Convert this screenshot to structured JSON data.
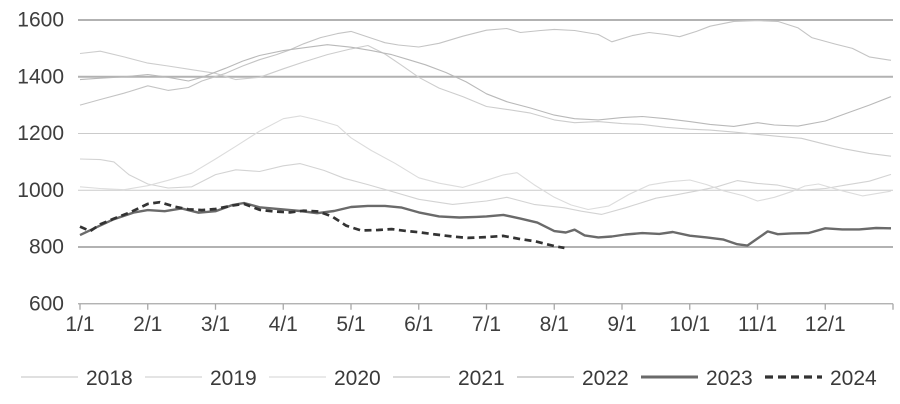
{
  "chart_data": {
    "type": "line",
    "title": "",
    "grid": "horizontal-only",
    "legend_position": "bottom",
    "colors": {
      "axis_text": "#3e3e3e",
      "grid_major": "#b2b2b2",
      "grid_minor": "#cbcbcb",
      "axis_line": "#a8a8a8"
    },
    "y_axis": {
      "range": [
        600,
        1600
      ],
      "ticks": [
        {
          "label": "1600",
          "value": 1600,
          "weight": "major"
        },
        {
          "label": "1400",
          "value": 1400,
          "weight": "major"
        },
        {
          "label": "1200",
          "value": 1200,
          "weight": "minor"
        },
        {
          "label": "1000",
          "value": 1000,
          "weight": "minor"
        },
        {
          "label": "800",
          "value": 800,
          "weight": "major"
        },
        {
          "label": "600",
          "value": 600,
          "weight": "axis"
        }
      ]
    },
    "x_axis": {
      "range_months": [
        1,
        13
      ],
      "ticks": [
        {
          "label": "1/1",
          "month": 1
        },
        {
          "label": "2/1",
          "month": 2
        },
        {
          "label": "3/1",
          "month": 3
        },
        {
          "label": "4/1",
          "month": 4
        },
        {
          "label": "5/1",
          "month": 5
        },
        {
          "label": "6/1",
          "month": 6
        },
        {
          "label": "7/1",
          "month": 7
        },
        {
          "label": "8/1",
          "month": 8
        },
        {
          "label": "9/1",
          "month": 9
        },
        {
          "label": "10/1",
          "month": 10
        },
        {
          "label": "11/1",
          "month": 11
        },
        {
          "label": "12/1",
          "month": 12
        }
      ]
    },
    "series": [
      {
        "name": "2018",
        "color": "#cdcdcd",
        "width": 1.1,
        "dash": "",
        "x": [
          1.0,
          1.3,
          1.65,
          2.0,
          2.3,
          2.65,
          3.0,
          3.3,
          3.65,
          4.0,
          4.3,
          4.65,
          5.0,
          5.25,
          5.5,
          5.75,
          6.0,
          6.3,
          6.65,
          7.0,
          7.3,
          7.65,
          8.0,
          8.3,
          8.65,
          9.0,
          9.3,
          9.65,
          10.0,
          10.3,
          10.65,
          11.0,
          11.3,
          11.65,
          12.0,
          12.3,
          12.65,
          12.97
        ],
        "y": [
          1482,
          1490,
          1470,
          1448,
          1438,
          1425,
          1412,
          1390,
          1398,
          1428,
          1452,
          1478,
          1498,
          1510,
          1480,
          1440,
          1398,
          1360,
          1330,
          1295,
          1285,
          1272,
          1248,
          1238,
          1242,
          1235,
          1232,
          1222,
          1215,
          1212,
          1205,
          1197,
          1190,
          1183,
          1162,
          1145,
          1130,
          1120
        ]
      },
      {
        "name": "2019",
        "color": "#d3d3d3",
        "width": 1.1,
        "dash": "",
        "x": [
          1.0,
          1.3,
          1.5,
          1.72,
          2.0,
          2.3,
          2.65,
          3.0,
          3.3,
          3.65,
          4.0,
          4.25,
          4.6,
          4.9,
          5.25,
          5.6,
          6.0,
          6.5,
          7.0,
          7.3,
          7.7,
          8.15,
          8.4,
          8.7,
          9.05,
          9.5,
          9.8,
          10.15,
          10.4,
          10.7,
          11.0,
          11.3,
          11.65,
          12.0,
          12.3,
          12.65,
          12.97
        ],
        "y": [
          1110,
          1108,
          1100,
          1055,
          1022,
          1008,
          1012,
          1055,
          1072,
          1066,
          1086,
          1094,
          1070,
          1042,
          1020,
          996,
          968,
          950,
          962,
          975,
          950,
          938,
          926,
          915,
          938,
          972,
          984,
          1000,
          1012,
          1034,
          1024,
          1018,
          1000,
          1006,
          1018,
          1032,
          1056
        ]
      },
      {
        "name": "2020",
        "color": "#dcdcdc",
        "width": 1.1,
        "dash": "",
        "x": [
          1.0,
          1.3,
          1.65,
          2.0,
          2.3,
          2.65,
          3.0,
          3.3,
          3.65,
          4.0,
          4.25,
          4.5,
          4.8,
          5.0,
          5.3,
          5.65,
          6.0,
          6.3,
          6.65,
          7.0,
          7.25,
          7.45,
          7.7,
          8.0,
          8.25,
          8.5,
          8.8,
          9.1,
          9.4,
          9.7,
          10.0,
          10.25,
          10.5,
          10.8,
          11.0,
          11.25,
          11.5,
          11.7,
          11.9,
          12.25,
          12.55,
          12.97
        ],
        "y": [
          1012,
          1006,
          1002,
          1016,
          1035,
          1060,
          1110,
          1155,
          1208,
          1252,
          1262,
          1248,
          1228,
          1185,
          1140,
          1095,
          1044,
          1025,
          1010,
          1035,
          1054,
          1062,
          1020,
          975,
          948,
          932,
          944,
          985,
          1018,
          1030,
          1036,
          1020,
          998,
          980,
          962,
          975,
          995,
          1015,
          1022,
          998,
          980,
          997
        ]
      },
      {
        "name": "2021",
        "color": "#c4c4c4",
        "width": 1.1,
        "dash": "",
        "x": [
          1.0,
          1.3,
          1.65,
          2.0,
          2.3,
          2.6,
          2.8,
          3.15,
          3.4,
          3.65,
          3.9,
          4.1,
          4.3,
          4.55,
          4.8,
          5.0,
          5.25,
          5.5,
          5.7,
          6.0,
          6.3,
          6.65,
          7.0,
          7.3,
          7.5,
          7.8,
          8.0,
          8.3,
          8.65,
          8.85,
          9.15,
          9.4,
          9.65,
          9.85,
          10.1,
          10.3,
          10.65,
          11.0,
          11.3,
          11.6,
          11.8,
          12.15,
          12.4,
          12.65,
          12.97
        ],
        "y": [
          1300,
          1320,
          1342,
          1368,
          1352,
          1362,
          1385,
          1412,
          1438,
          1460,
          1478,
          1495,
          1516,
          1538,
          1552,
          1560,
          1540,
          1520,
          1512,
          1505,
          1518,
          1543,
          1564,
          1570,
          1556,
          1563,
          1567,
          1563,
          1549,
          1523,
          1545,
          1556,
          1549,
          1541,
          1560,
          1578,
          1595,
          1598,
          1595,
          1572,
          1538,
          1515,
          1500,
          1470,
          1458
        ]
      },
      {
        "name": "2022",
        "color": "#b9b9b9",
        "width": 1.1,
        "dash": "",
        "x": [
          1.0,
          1.3,
          1.65,
          2.0,
          2.3,
          2.6,
          2.8,
          3.15,
          3.4,
          3.65,
          4.0,
          4.3,
          4.65,
          5.0,
          5.3,
          5.6,
          5.85,
          6.1,
          6.4,
          6.7,
          7.0,
          7.3,
          7.65,
          8.0,
          8.3,
          8.65,
          9.0,
          9.3,
          9.65,
          10.0,
          10.3,
          10.65,
          11.0,
          11.25,
          11.6,
          12.0,
          12.3,
          12.65,
          12.97
        ],
        "y": [
          1390,
          1395,
          1400,
          1408,
          1398,
          1385,
          1398,
          1430,
          1455,
          1475,
          1492,
          1502,
          1513,
          1504,
          1492,
          1478,
          1460,
          1442,
          1415,
          1382,
          1340,
          1312,
          1290,
          1265,
          1252,
          1248,
          1256,
          1260,
          1252,
          1242,
          1232,
          1225,
          1238,
          1230,
          1226,
          1244,
          1270,
          1300,
          1330
        ]
      },
      {
        "name": "2023",
        "color": "#6a6a6a",
        "width": 2.4,
        "dash": "",
        "x": [
          1.0,
          1.25,
          1.5,
          1.8,
          2.0,
          2.25,
          2.5,
          2.75,
          3.0,
          3.25,
          3.42,
          3.65,
          4.0,
          4.25,
          4.5,
          4.75,
          5.0,
          5.25,
          5.5,
          5.75,
          6.0,
          6.3,
          6.6,
          6.85,
          7.0,
          7.25,
          7.5,
          7.75,
          8.0,
          8.17,
          8.3,
          8.45,
          8.65,
          8.85,
          9.05,
          9.3,
          9.55,
          9.75,
          10.0,
          10.25,
          10.5,
          10.7,
          10.85,
          11.0,
          11.15,
          11.3,
          11.5,
          11.75,
          12.0,
          12.25,
          12.5,
          12.75,
          12.97
        ],
        "y": [
          842,
          870,
          898,
          922,
          930,
          926,
          936,
          921,
          926,
          948,
          955,
          940,
          932,
          927,
          919,
          927,
          941,
          945,
          945,
          939,
          922,
          908,
          904,
          906,
          908,
          913,
          900,
          886,
          856,
          851,
          861,
          841,
          834,
          837,
          844,
          849,
          846,
          853,
          840,
          834,
          826,
          810,
          805,
          830,
          855,
          845,
          848,
          849,
          866,
          862,
          862,
          867,
          866
        ]
      },
      {
        "name": "2024",
        "color": "#333333",
        "width": 2.7,
        "dash": "7 4.5",
        "x": [
          1.0,
          1.15,
          1.3,
          1.5,
          1.72,
          2.0,
          2.18,
          2.4,
          2.6,
          2.8,
          3.0,
          3.25,
          3.42,
          3.65,
          3.87,
          4.1,
          4.3,
          4.52,
          4.72,
          4.93,
          5.15,
          5.4,
          5.6,
          5.83,
          6.0,
          6.25,
          6.5,
          6.72,
          7.0,
          7.25,
          7.5,
          7.72,
          8.0,
          8.15
        ],
        "y": [
          872,
          856,
          880,
          900,
          920,
          952,
          958,
          942,
          933,
          930,
          934,
          946,
          952,
          931,
          925,
          922,
          928,
          925,
          908,
          875,
          858,
          860,
          863,
          856,
          852,
          844,
          837,
          832,
          835,
          839,
          828,
          820,
          803,
          797
        ]
      }
    ],
    "legend": [
      {
        "label": "2018",
        "series": "2018"
      },
      {
        "label": "2019",
        "series": "2019"
      },
      {
        "label": "2020",
        "series": "2020"
      },
      {
        "label": "2021",
        "series": "2021"
      },
      {
        "label": "2022",
        "series": "2022"
      },
      {
        "label": "2023",
        "series": "2023"
      },
      {
        "label": "2024",
        "series": "2024"
      }
    ]
  }
}
